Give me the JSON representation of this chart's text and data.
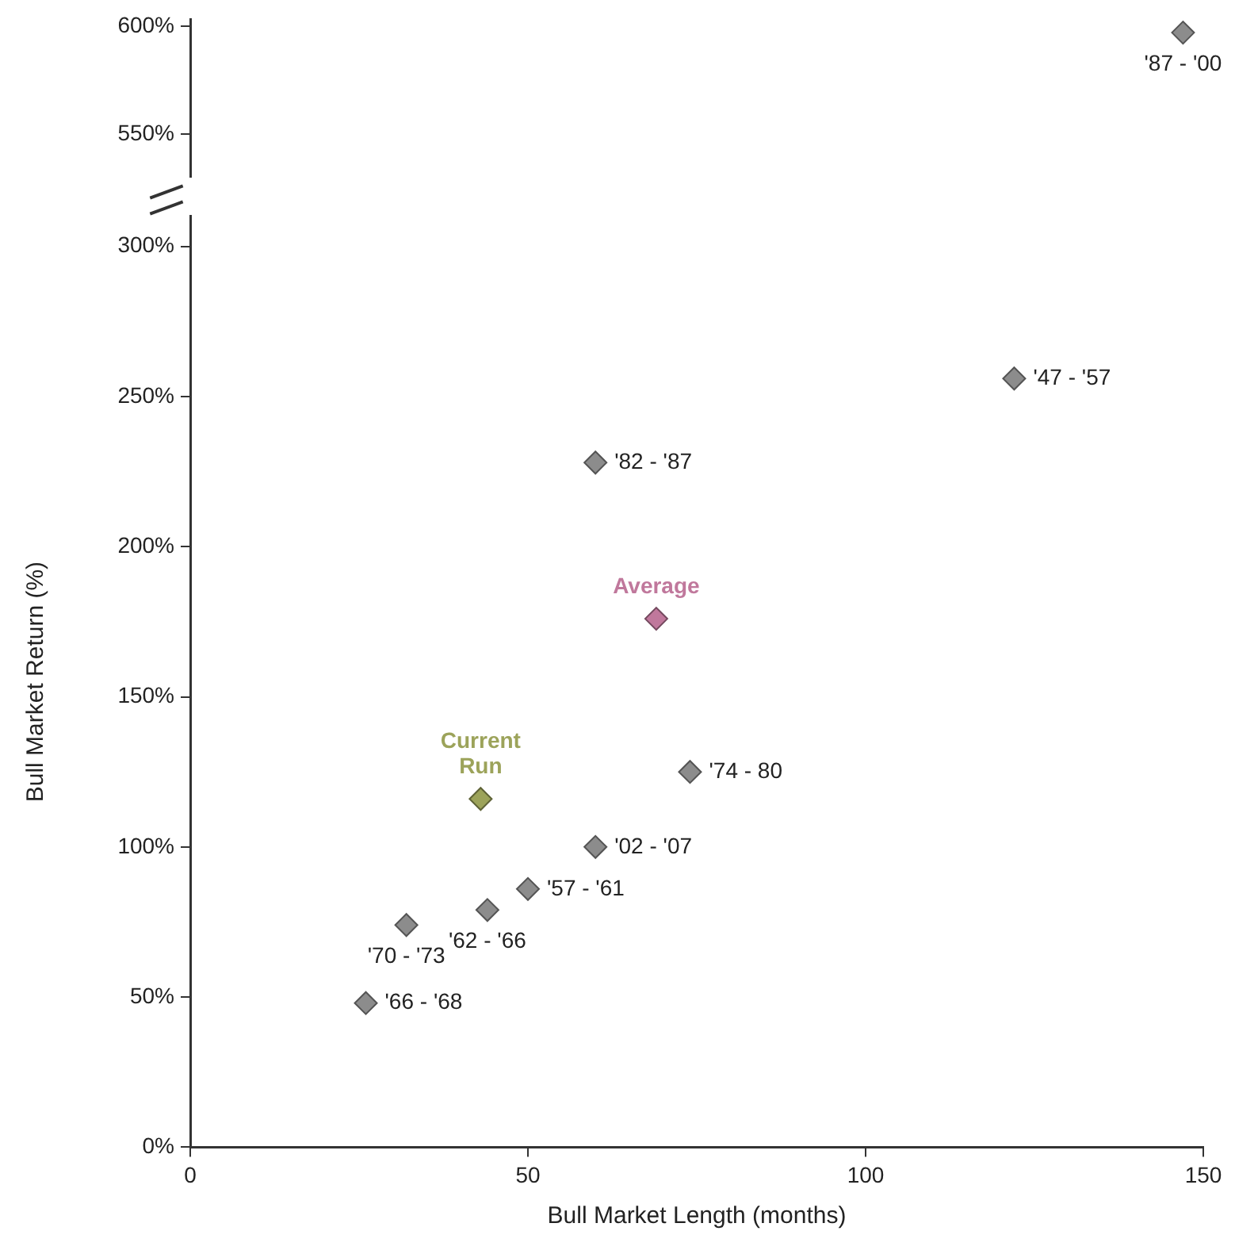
{
  "chart_data": [
    {
      "type": "scatter",
      "marker": "diamond",
      "grid": false,
      "legend": false,
      "tick_labels": "y",
      "xlim": [
        0,
        150
      ],
      "ylim": [
        530,
        603
      ],
      "yticks": [
        {
          "value": 550,
          "label": "550%"
        },
        {
          "value": 600,
          "label": "600%"
        }
      ],
      "series": [
        {
          "color": "#8c8c8c",
          "x": [
            147
          ],
          "values": [
            597
          ]
        }
      ],
      "annotations": [
        {
          "text": "'87 - '00",
          "x": 147,
          "y": 597
        }
      ]
    },
    {
      "type": "scatter",
      "marker": "diamond",
      "grid": false,
      "legend": false,
      "xlim": [
        0,
        150
      ],
      "xticks": [
        0,
        50,
        100,
        150
      ],
      "ylim": [
        0,
        310
      ],
      "yticks": [
        {
          "value": 0,
          "label": "0%"
        },
        {
          "value": 50,
          "label": "50%"
        },
        {
          "value": 100,
          "label": "100%"
        },
        {
          "value": 150,
          "label": "150%"
        },
        {
          "value": 200,
          "label": "200%"
        },
        {
          "value": 250,
          "label": "250%"
        },
        {
          "value": 300,
          "label": "300%"
        }
      ],
      "xlabel": "Bull Market Length (months)",
      "ylabel": "Bull Market Return (%)",
      "series": [
        {
          "color": "#8c8c8c",
          "x": [
            122,
            60,
            74,
            60,
            50,
            44,
            32,
            26
          ],
          "values": [
            256,
            228,
            125,
            100,
            86,
            79,
            74,
            48
          ]
        },
        {
          "name": "Average",
          "color": "#c0789c",
          "x": [
            69
          ],
          "values": [
            176
          ]
        },
        {
          "name": "Current Run",
          "color": "#9ca35a",
          "x": [
            43
          ],
          "values": [
            116
          ]
        }
      ],
      "annotations": [
        {
          "text": "'47 - '57",
          "x": 122,
          "y": 256
        },
        {
          "text": "'82 - '87",
          "x": 60,
          "y": 228
        },
        {
          "text": "'74 - 80",
          "x": 74,
          "y": 125
        },
        {
          "text": "'02 - '07",
          "x": 60,
          "y": 100
        },
        {
          "text": "'57 - '61",
          "x": 50,
          "y": 86
        },
        {
          "text": "'62 - '66",
          "x": 44,
          "y": 79
        },
        {
          "text": "'70 - '73",
          "x": 32,
          "y": 74
        },
        {
          "text": "'66 - '68",
          "x": 26,
          "y": 48
        }
      ]
    }
  ]
}
